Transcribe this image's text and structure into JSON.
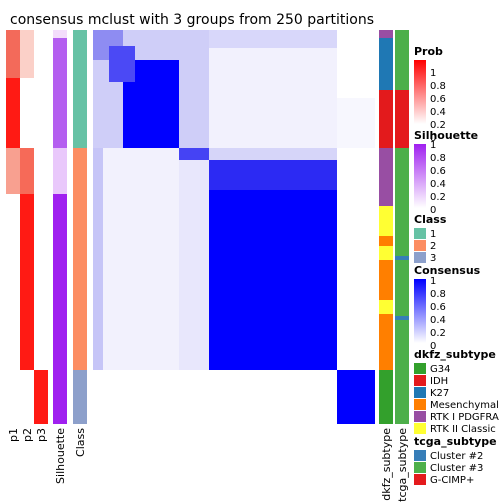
{
  "chart_data": {
    "type": "heatmap",
    "title": "consensus mclust with 3 groups from 250 partitions",
    "columns": [
      "p1",
      "p2",
      "p3",
      "Silhouette",
      "Class",
      "dkfz_subtype",
      "tcga_subtype"
    ],
    "matrix_blocks": [
      {
        "rows": [
          0,
          0.08
        ],
        "cols": [
          0,
          0.08
        ],
        "value": 0.55
      },
      {
        "rows": [
          0.08,
          0.3
        ],
        "cols": [
          0.08,
          0.3
        ],
        "value": 0.95
      },
      {
        "rows": [
          0.3,
          0.42
        ],
        "cols": [
          0.3,
          0.42
        ],
        "value": 0.85
      },
      {
        "rows": [
          0.42,
          0.87
        ],
        "cols": [
          0.42,
          0.87
        ],
        "value": 1.0
      },
      {
        "rows": [
          0.87,
          1.0
        ],
        "cols": [
          0.87,
          1.0
        ],
        "value": 1.0
      },
      {
        "rows": [
          0,
          0.3
        ],
        "cols": [
          0,
          0.3
        ],
        "value": 0.4
      },
      {
        "rows": [
          0.3,
          0.87
        ],
        "cols": [
          0.3,
          0.87
        ],
        "value": 0.5
      },
      {
        "rows": [
          0,
          0.3
        ],
        "cols": [
          0.3,
          0.87
        ],
        "value": 0.12
      }
    ],
    "legends": [
      {
        "title": "Prob",
        "type": "gradient",
        "ticks": [
          "1",
          "0.8",
          "0.6",
          "0.4",
          "0.2",
          "0"
        ],
        "low": "#ffffff",
        "high": "#ff0000"
      },
      {
        "title": "Silhouette",
        "type": "gradient",
        "ticks": [
          "1",
          "0.8",
          "0.6",
          "0.4",
          "0.2",
          "0"
        ],
        "low": "#ffffff",
        "high": "#a020f0"
      },
      {
        "title": "Class",
        "type": "discrete",
        "items": [
          {
            "label": "1",
            "color": "#66c2a5"
          },
          {
            "label": "2",
            "color": "#fc8d62"
          },
          {
            "label": "3",
            "color": "#8da0cb"
          }
        ]
      },
      {
        "title": "Consensus",
        "type": "gradient",
        "ticks": [
          "1",
          "0.8",
          "0.6",
          "0.4",
          "0.2",
          "0"
        ],
        "low": "#ffffff",
        "high": "#0000ff"
      },
      {
        "title": "dkfz_subtype",
        "type": "discrete",
        "items": [
          {
            "label": "G34",
            "color": "#33a02c"
          },
          {
            "label": "IDH",
            "color": "#e31a1c"
          },
          {
            "label": "K27",
            "color": "#1f78b4"
          },
          {
            "label": "Mesenchymal",
            "color": "#ff7f00"
          },
          {
            "label": "RTK I PDGFRA",
            "color": "#984ea3"
          },
          {
            "label": "RTK II Classic",
            "color": "#ffff33"
          }
        ]
      },
      {
        "title": "tcga_subtype",
        "type": "discrete",
        "items": [
          {
            "label": "Cluster #2",
            "color": "#377eb8"
          },
          {
            "label": "Cluster #3",
            "color": "#4daf4a"
          },
          {
            "label": "G-CIMP+",
            "color": "#e41a1c"
          }
        ]
      }
    ]
  }
}
